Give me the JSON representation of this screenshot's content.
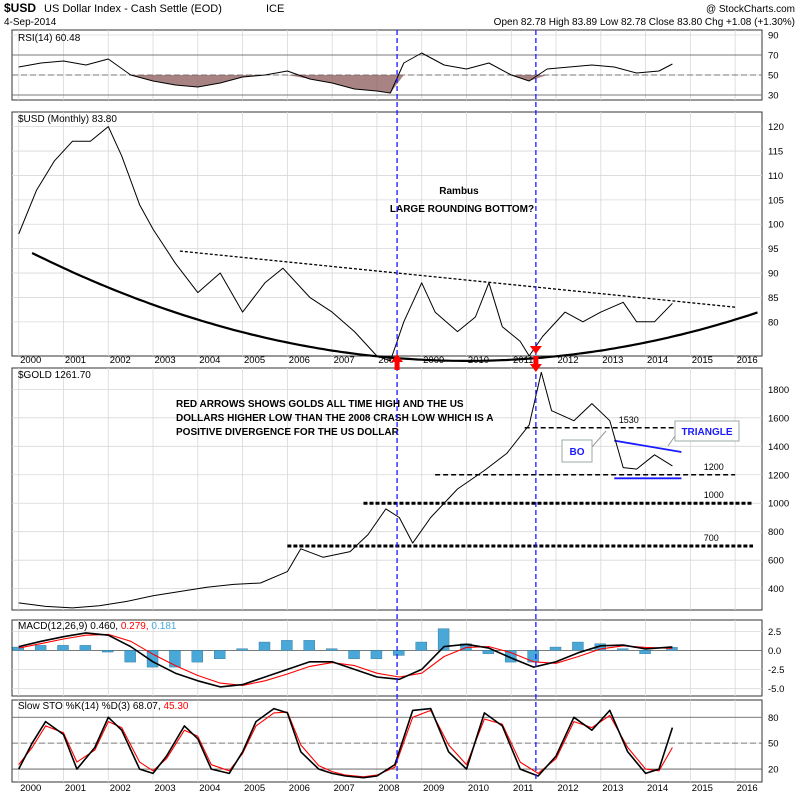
{
  "header": {
    "symbol": "$USD",
    "name": "US Dollar Index - Cash Settle (EOD)",
    "exchange": "ICE",
    "watermark": "@ StockCharts.com",
    "date": "4-Sep-2014",
    "quote": "Open 82.78  High 83.89  Low 82.78  Close 83.80  Chg +1.08 (+1.30%)"
  },
  "colors": {
    "blue_line": "#1a1aff",
    "red_arrow": "#ff0000",
    "price": "#000000",
    "signal_red": "#ff0000",
    "histogram": "#4aa8d8",
    "rsi_negative_fill": "#8b5a5a",
    "grid": "#d8d8d8"
  },
  "chart_data": [
    {
      "type": "line",
      "panel": "rsi",
      "label": "RSI(14) 60.48",
      "ylim": [
        25,
        95
      ],
      "yticks": [
        30,
        50,
        70,
        90
      ],
      "reference_lines": [
        30,
        50,
        70
      ],
      "x": [
        2000,
        2000.5,
        2001,
        2001.5,
        2002,
        2002.5,
        2003,
        2003.5,
        2004,
        2004.5,
        2005,
        2005.5,
        2006,
        2006.5,
        2007,
        2007.5,
        2008,
        2008.3,
        2008.6,
        2009,
        2009.5,
        2010,
        2010.5,
        2011,
        2011.4,
        2011.8,
        2012.3,
        2012.8,
        2013.3,
        2013.8,
        2014.3,
        2014.6
      ],
      "values": [
        58,
        62,
        64,
        60,
        66,
        50,
        44,
        40,
        38,
        42,
        48,
        50,
        54,
        46,
        42,
        36,
        34,
        32,
        62,
        72,
        60,
        56,
        62,
        50,
        44,
        56,
        58,
        60,
        58,
        52,
        54,
        61
      ]
    },
    {
      "type": "line",
      "panel": "usd",
      "label": "$USD (Monthly) 83.80",
      "ylim": [
        73,
        123
      ],
      "yticks": [
        80,
        85,
        90,
        95,
        100,
        105,
        110,
        115,
        120
      ],
      "x": [
        2000,
        2000.4,
        2000.8,
        2001.2,
        2001.6,
        2002,
        2002.3,
        2002.7,
        2003,
        2003.5,
        2004,
        2004.5,
        2005,
        2005.5,
        2005.9,
        2006.5,
        2007,
        2007.5,
        2008,
        2008.3,
        2008.6,
        2009,
        2009.3,
        2009.8,
        2010.2,
        2010.5,
        2010.8,
        2011.2,
        2011.4,
        2011.7,
        2012.2,
        2012.6,
        2013,
        2013.5,
        2013.8,
        2014.2,
        2014.6
      ],
      "values": [
        98,
        107,
        113,
        117,
        117,
        120,
        114,
        104,
        99,
        92,
        86,
        90,
        82,
        88,
        91,
        85,
        82,
        78,
        73,
        72,
        80,
        88,
        82,
        78,
        81,
        88,
        79,
        76,
        73,
        77,
        82,
        80,
        82,
        84,
        80,
        80,
        83.8
      ],
      "annotations": {
        "author": "Rambus",
        "title_note": "LARGE ROUNDING BOTTOM?"
      }
    },
    {
      "type": "line",
      "panel": "gold",
      "label": "$GOLD 1261.70",
      "ylim": [
        250,
        1950
      ],
      "yticks": [
        400,
        600,
        800,
        1000,
        1200,
        1400,
        1600,
        1800
      ],
      "x": [
        2000,
        2000.6,
        2001.2,
        2001.8,
        2002.4,
        2003,
        2003.6,
        2004.2,
        2004.8,
        2005.4,
        2006,
        2006.3,
        2006.8,
        2007.4,
        2007.8,
        2008.2,
        2008.5,
        2008.8,
        2009.2,
        2009.8,
        2010.4,
        2010.9,
        2011.4,
        2011.67,
        2011.9,
        2012.4,
        2012.8,
        2013.2,
        2013.5,
        2013.8,
        2014.2,
        2014.6
      ],
      "values": [
        300,
        275,
        265,
        280,
        310,
        350,
        380,
        410,
        430,
        440,
        520,
        680,
        620,
        660,
        780,
        960,
        900,
        720,
        900,
        1100,
        1230,
        1350,
        1550,
        1920,
        1650,
        1580,
        1700,
        1580,
        1250,
        1240,
        1340,
        1262
      ],
      "levels": [
        {
          "value": 1530,
          "label": "1530"
        },
        {
          "value": 1200,
          "label": "1200"
        },
        {
          "value": 1000,
          "label": "1000"
        },
        {
          "value": 700,
          "label": "700"
        }
      ],
      "triangle": {
        "upper_from": [
          2013.3,
          1440
        ],
        "upper_to": [
          2014.8,
          1360
        ],
        "lower_from": [
          2013.3,
          1175
        ],
        "lower_to": [
          2014.8,
          1175
        ]
      },
      "annotations": {
        "note_line1": "RED ARROWS SHOWS GOLDS ALL TIME HIGH AND THE US",
        "note_line2": "DOLLARS HIGHER LOW THAN THE 2008 CRASH LOW WHICH IS A",
        "note_line3": "POSITIVE DIVERGENCE FOR THE US DOLLAR",
        "triangle_label": "TRIANGLE",
        "breakout_label": "BO"
      }
    },
    {
      "type": "line",
      "panel": "macd",
      "label_prefix": "MACD(12,26,9)",
      "label_v1": "0.460",
      "label_v2": "0.279",
      "label_v3": "0.181",
      "ylim": [
        -6,
        4
      ],
      "yticks": [
        -5.0,
        -2.5,
        0.0,
        2.5
      ],
      "x": [
        2000,
        2000.5,
        2001,
        2001.5,
        2002,
        2002.5,
        2003,
        2003.5,
        2004,
        2004.5,
        2005,
        2005.5,
        2006,
        2006.5,
        2007,
        2007.5,
        2008,
        2008.5,
        2009,
        2009.5,
        2010,
        2010.5,
        2011,
        2011.5,
        2012,
        2012.5,
        2013,
        2013.5,
        2014,
        2014.6
      ],
      "macd": [
        0.5,
        1.2,
        1.8,
        2.3,
        2.0,
        0.5,
        -1.5,
        -3.0,
        -4.0,
        -4.8,
        -4.5,
        -3.5,
        -2.5,
        -1.5,
        -1.5,
        -2.5,
        -3.5,
        -3.8,
        -2.5,
        0.5,
        0.8,
        0.3,
        -1.0,
        -2.2,
        -1.5,
        -0.3,
        0.6,
        0.7,
        0.2,
        0.46
      ],
      "signal": [
        0.3,
        0.9,
        1.5,
        2.0,
        2.1,
        1.2,
        -0.5,
        -2.0,
        -3.3,
        -4.3,
        -4.6,
        -4.0,
        -3.1,
        -2.1,
        -1.6,
        -2.0,
        -3.0,
        -3.5,
        -3.0,
        -0.8,
        0.4,
        0.5,
        -0.3,
        -1.5,
        -1.7,
        -0.8,
        0.2,
        0.6,
        0.4,
        0.28
      ]
    },
    {
      "type": "line",
      "panel": "sto",
      "label_prefix": "Slow STO %K(14) %D(3)",
      "label_v1": "68.07",
      "label_v2": "45.30",
      "ylim": [
        5,
        100
      ],
      "yticks": [
        20,
        50,
        80
      ],
      "reference_lines": [
        20,
        50,
        80
      ],
      "x": [
        2000,
        2000.3,
        2000.6,
        2001,
        2001.3,
        2001.7,
        2002,
        2002.3,
        2002.7,
        2003,
        2003.3,
        2003.7,
        2004,
        2004.3,
        2004.7,
        2005,
        2005.3,
        2005.7,
        2006,
        2006.3,
        2006.7,
        2007,
        2007.3,
        2007.7,
        2008,
        2008.4,
        2008.8,
        2009.2,
        2009.6,
        2010,
        2010.4,
        2010.8,
        2011.2,
        2011.6,
        2012,
        2012.4,
        2012.8,
        2013.2,
        2013.6,
        2014,
        2014.3,
        2014.6
      ],
      "k": [
        20,
        50,
        75,
        60,
        20,
        45,
        80,
        65,
        20,
        15,
        35,
        70,
        55,
        20,
        15,
        40,
        75,
        90,
        85,
        40,
        20,
        15,
        12,
        10,
        12,
        25,
        88,
        90,
        40,
        20,
        85,
        70,
        20,
        12,
        35,
        80,
        65,
        88,
        40,
        15,
        20,
        68
      ],
      "d": [
        25,
        45,
        70,
        62,
        28,
        42,
        75,
        68,
        28,
        18,
        32,
        65,
        58,
        25,
        18,
        38,
        70,
        85,
        86,
        48,
        24,
        17,
        13,
        11,
        13,
        22,
        80,
        88,
        48,
        25,
        78,
        72,
        28,
        15,
        32,
        75,
        68,
        82,
        45,
        20,
        18,
        45
      ]
    }
  ],
  "x_axis": {
    "labels": [
      "2000",
      "2001",
      "2002",
      "2003",
      "2004",
      "2005",
      "2006",
      "2007",
      "2008",
      "2009",
      "2010",
      "2011",
      "2012",
      "2013",
      "2014",
      "2015",
      "2016"
    ]
  },
  "vertical_markers": [
    2008.45,
    2011.55
  ]
}
